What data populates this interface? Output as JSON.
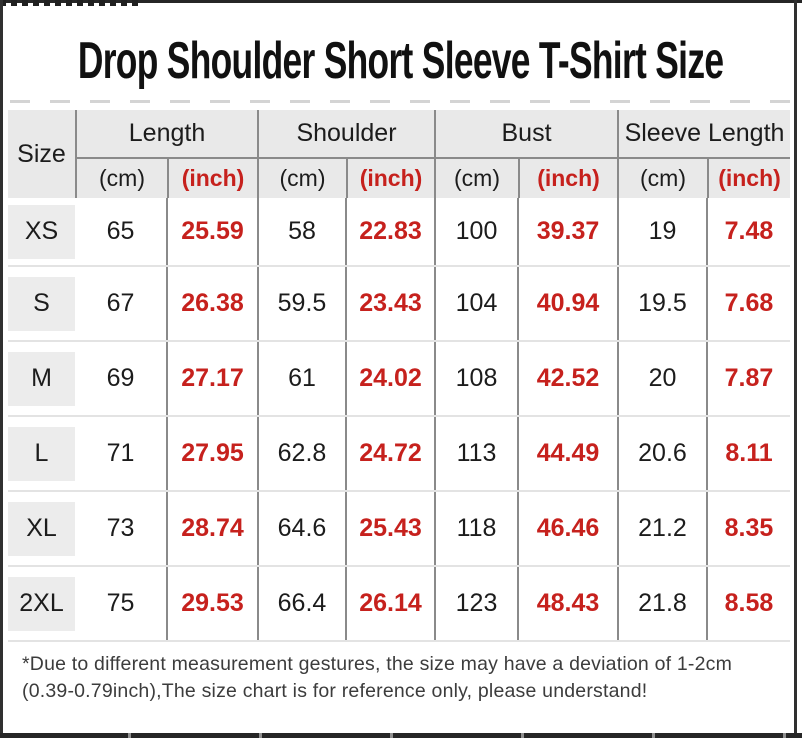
{
  "title": "Drop Shoulder Short Sleeve T-Shirt Size",
  "header": {
    "size": "Size",
    "groups": [
      "Length",
      "Shoulder",
      "Bust",
      "Sleeve Length"
    ],
    "cm": "(cm)",
    "inch": "(inch)"
  },
  "chart_data": {
    "type": "table",
    "title": "Drop Shoulder Short Sleeve T-Shirt Size",
    "columns": [
      "Size",
      "Length (cm)",
      "Length (inch)",
      "Shoulder (cm)",
      "Shoulder (inch)",
      "Bust (cm)",
      "Bust (inch)",
      "Sleeve Length (cm)",
      "Sleeve Length (inch)"
    ],
    "rows": [
      {
        "size": "XS",
        "values": [
          65,
          25.59,
          58,
          22.83,
          100,
          39.37,
          19,
          7.48
        ]
      },
      {
        "size": "S",
        "values": [
          67,
          26.38,
          59.5,
          23.43,
          104,
          40.94,
          19.5,
          7.68
        ]
      },
      {
        "size": "M",
        "values": [
          69,
          27.17,
          61,
          24.02,
          108,
          42.52,
          20,
          7.87
        ]
      },
      {
        "size": "L",
        "values": [
          71,
          27.95,
          62.8,
          24.72,
          113,
          44.49,
          20.6,
          8.11
        ]
      },
      {
        "size": "XL",
        "values": [
          73,
          28.74,
          64.6,
          25.43,
          118,
          46.46,
          21.2,
          8.35
        ]
      },
      {
        "size": "2XL",
        "values": [
          75,
          29.53,
          66.4,
          26.14,
          123,
          48.43,
          21.8,
          8.58
        ]
      }
    ]
  },
  "footnote": {
    "line1": "*Due to different measurement gestures, the size may have a deviation of 1-2cm",
    "line2": "(0.39-0.79inch),The size chart is for reference only, please understand!"
  },
  "colors": {
    "accent_red": "#c6211d",
    "header_bg": "#e9e9e9",
    "size_chip_bg": "#ececec",
    "grid_dark": "#8a8a8a",
    "grid_light": "#e3e3e3",
    "text_black": "#1c1c1c",
    "footnote_text": "#3c3c3c",
    "frame_dark": "#2a2a2a"
  }
}
